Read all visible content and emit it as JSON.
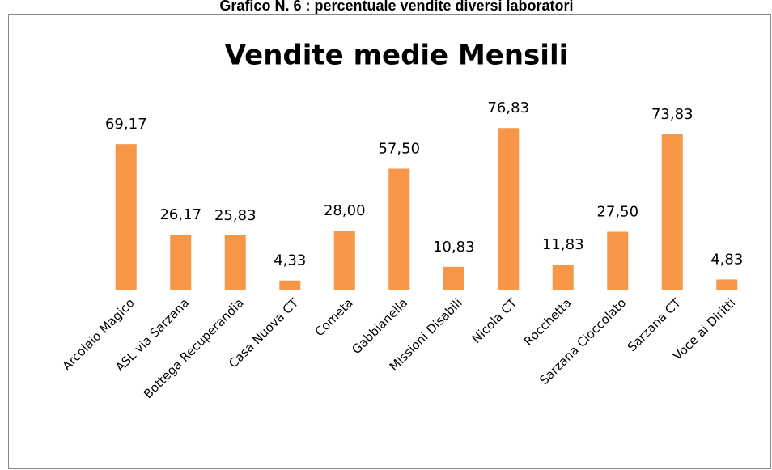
{
  "chart_data": {
    "type": "bar",
    "caption": "Grafico N. 6 : percentuale vendite diversi laboratori",
    "title": "Vendite medie Mensili",
    "categories": [
      "Arcolaio Magico",
      "ASL via Sarzana",
      "Bottega Recuperandia",
      "Casa Nuova CT",
      "Cometa",
      "Gabbianella",
      "Missioni Disabili",
      "Nicola CT",
      "Rocchetta",
      "Sarzana Cioccolato",
      "Sarzana CT",
      "Voce ai Diritti"
    ],
    "values": [
      69.17,
      26.17,
      25.83,
      4.33,
      28.0,
      57.5,
      10.83,
      76.83,
      11.83,
      27.5,
      73.83,
      4.83
    ],
    "value_labels": [
      "69,17",
      "26,17",
      "25,83",
      "4,33",
      "28,00",
      "57,50",
      "10,83",
      "76,83",
      "11,83",
      "27,50",
      "73,83",
      "4,83"
    ],
    "color": "#f79646"
  }
}
